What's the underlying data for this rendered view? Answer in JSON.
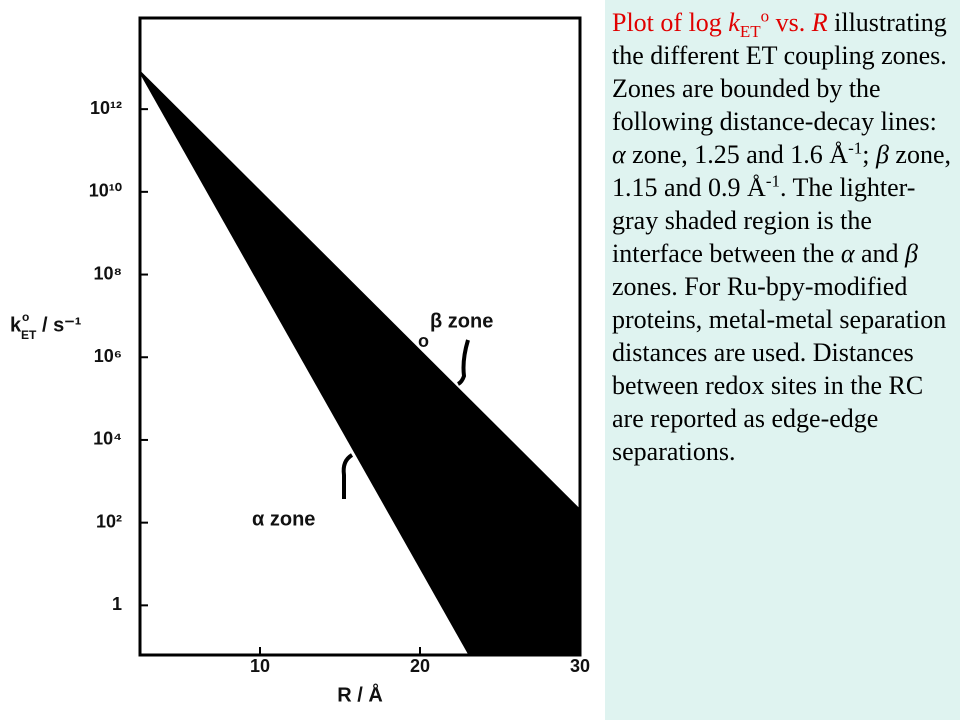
{
  "chart_data": {
    "type": "area",
    "log_y": true,
    "xlabel": "R / Å",
    "ylabel_symbol": "k",
    "ylabel_sup": "o",
    "ylabel_sub": "ET",
    "ylabel_unit": "/ s⁻¹",
    "xlim": [
      2.5,
      30
    ],
    "xticks": [
      10,
      20,
      30
    ],
    "ylim": [
      0.063,
      160000000000000.0
    ],
    "yticks": [
      1,
      {
        "value": 100,
        "label": "10²"
      },
      {
        "value": 10000,
        "label": "10⁴"
      },
      {
        "value": 1000000,
        "label": "10⁶"
      },
      {
        "value": 100000000,
        "label": "10⁸"
      },
      {
        "value": 10000000000,
        "label": "10¹⁰"
      },
      {
        "value": 1000000000000,
        "label": "10¹²"
      }
    ],
    "color": "#000000",
    "series": [
      {
        "x": [
          2.5,
          30
        ],
        "values": [
          8000000000000.0,
          200
        ]
      },
      {
        "x": [
          2.5,
          23.1
        ],
        "values": [
          8000000000000.0,
          0.063
        ]
      }
    ],
    "annotations": [
      "β zone",
      "α zone",
      "o"
    ]
  },
  "caption": {
    "runs": [
      {
        "text": "Plot of log ",
        "style": "red"
      },
      {
        "text": "k",
        "style": "red-italic"
      },
      {
        "text": "ET",
        "style": "red-sub"
      },
      {
        "text": "o",
        "style": "red-sup"
      },
      {
        "text": " vs. ",
        "style": "red"
      },
      {
        "text": "R",
        "style": "red-italic"
      },
      {
        "text": " illustrating the different ET coupling zones. Zones are bounded by the following distance-decay lines: ",
        "style": "plain"
      },
      {
        "text": "α",
        "style": "italic"
      },
      {
        "text": " zone, 1.25 and 1.6 Å",
        "style": "plain"
      },
      {
        "text": "-1",
        "style": "sup"
      },
      {
        "text": "; ",
        "style": "plain"
      },
      {
        "text": "β",
        "style": "italic"
      },
      {
        "text": " zone, 1.15 and 0.9 Å",
        "style": "plain"
      },
      {
        "text": "-1",
        "style": "sup"
      },
      {
        "text": ". The lighter-gray shaded region is the interface between the ",
        "style": "plain"
      },
      {
        "text": "α",
        "style": "italic"
      },
      {
        "text": " and ",
        "style": "plain"
      },
      {
        "text": "β",
        "style": "italic"
      },
      {
        "text": " zones. For Ru-bpy-modified proteins, metal-metal separation distances are used. Distances between redox sites in the RC are reported as edge-edge separations.",
        "style": "plain"
      }
    ]
  }
}
